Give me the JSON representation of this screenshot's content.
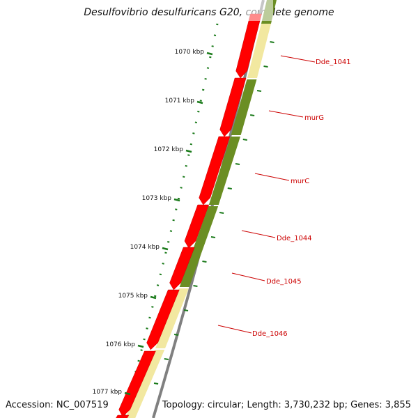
{
  "title": "Desulfovibrio desulfuricans G20, complete genome",
  "footer": {
    "accession": "Accession: NC_007519",
    "topology": "Topology: circular; Length: 3,730,232 bp; Genes: 3,855"
  },
  "scale_ticks": [
    {
      "label": "1070 kbp",
      "pos_kbp": 1070
    },
    {
      "label": "1071 kbp",
      "pos_kbp": 1071
    },
    {
      "label": "1072 kbp",
      "pos_kbp": 1072
    },
    {
      "label": "1073 kbp",
      "pos_kbp": 1073
    },
    {
      "label": "1074 kbp",
      "pos_kbp": 1074
    },
    {
      "label": "1075 kbp",
      "pos_kbp": 1075
    },
    {
      "label": "1076 kbp",
      "pos_kbp": 1076
    },
    {
      "label": "1077 kbp",
      "pos_kbp": 1077
    }
  ],
  "genes": [
    {
      "label": "Dde_1041"
    },
    {
      "label": "murG"
    },
    {
      "label": "murC"
    },
    {
      "label": "Dde_1044"
    },
    {
      "label": "Dde_1045"
    },
    {
      "label": "Dde_1046"
    }
  ],
  "colors": {
    "cds": "#ff0000",
    "backbone": "#808080",
    "cog_green": "#6b8e23",
    "cog_yellow": "#f2e8a0",
    "tick": "#1a7a1a",
    "gene_label": "#cc0000"
  }
}
